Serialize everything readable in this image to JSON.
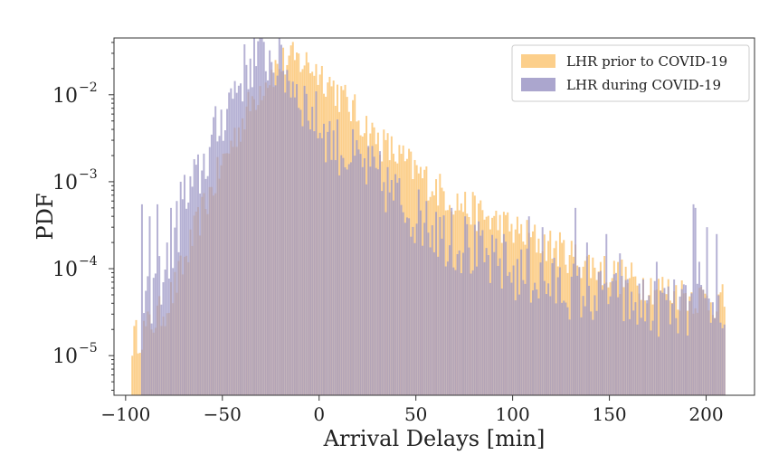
{
  "chart_data": {
    "type": "histogram",
    "xlabel": "Arrival Delays [min]",
    "ylabel": "PDF",
    "xlim": [
      -106,
      225
    ],
    "ylim": [
      3.5e-06,
      0.045
    ],
    "yscale": "log",
    "bin_width": 1,
    "x_ticks": [
      -100,
      -50,
      0,
      50,
      100,
      150,
      200
    ],
    "x_tick_labels": [
      "−100",
      "−50",
      "0",
      "50",
      "100",
      "150",
      "200"
    ],
    "y_ticks": [
      {
        "value": 1e-05,
        "base": "10",
        "exp": "−5"
      },
      {
        "value": 0.0001,
        "base": "10",
        "exp": "−4"
      },
      {
        "value": 0.001,
        "base": "10",
        "exp": "−3"
      },
      {
        "value": 0.01,
        "base": "10",
        "exp": "−2"
      }
    ],
    "grid": false,
    "legend_position": "top-right",
    "series": [
      {
        "name": "LHR prior to COVID-19",
        "color": "#fbc777",
        "range": [
          -97,
          209
        ],
        "profile": [
          [
            -97,
            1.5e-05
          ],
          [
            -90,
            2e-05
          ],
          [
            -80,
            3.5e-05
          ],
          [
            -75,
            6e-05
          ],
          [
            -70,
            0.00012
          ],
          [
            -65,
            0.00025
          ],
          [
            -60,
            0.0005
          ],
          [
            -55,
            0.0009
          ],
          [
            -50,
            0.0017
          ],
          [
            -45,
            0.003
          ],
          [
            -40,
            0.005
          ],
          [
            -35,
            0.0085
          ],
          [
            -30,
            0.013
          ],
          [
            -25,
            0.018
          ],
          [
            -20,
            0.023
          ],
          [
            -15,
            0.025
          ],
          [
            -10,
            0.0245
          ],
          [
            -5,
            0.022
          ],
          [
            0,
            0.018
          ],
          [
            5,
            0.014
          ],
          [
            10,
            0.01
          ],
          [
            15,
            0.0075
          ],
          [
            20,
            0.0055
          ],
          [
            25,
            0.004
          ],
          [
            30,
            0.003
          ],
          [
            40,
            0.002
          ],
          [
            50,
            0.0013
          ],
          [
            60,
            0.00085
          ],
          [
            70,
            0.0006
          ],
          [
            80,
            0.00045
          ],
          [
            90,
            0.00035
          ],
          [
            100,
            0.00028
          ],
          [
            110,
            0.00022
          ],
          [
            120,
            0.00018
          ],
          [
            130,
            0.00014
          ],
          [
            140,
            0.00011
          ],
          [
            150,
            9e-05
          ],
          [
            160,
            7.5e-05
          ],
          [
            170,
            6.5e-05
          ],
          [
            180,
            5.5e-05
          ],
          [
            190,
            5e-05
          ],
          [
            200,
            4.5e-05
          ],
          [
            209,
            4e-05
          ]
        ]
      },
      {
        "name": "LHR during COVID-19",
        "color": "#9c97c6",
        "range": [
          -92,
          209
        ],
        "profile": [
          [
            -92,
            3e-05
          ],
          [
            -80,
            0.0001
          ],
          [
            -70,
            0.0005
          ],
          [
            -60,
            0.0016
          ],
          [
            -55,
            0.003
          ],
          [
            -50,
            0.006
          ],
          [
            -45,
            0.011
          ],
          [
            -40,
            0.017
          ],
          [
            -35,
            0.025
          ],
          [
            -32,
            0.029
          ],
          [
            -30,
            0.029
          ],
          [
            -25,
            0.026
          ],
          [
            -20,
            0.021
          ],
          [
            -15,
            0.015
          ],
          [
            -10,
            0.01
          ],
          [
            -5,
            0.0065
          ],
          [
            0,
            0.0045
          ],
          [
            5,
            0.0032
          ],
          [
            10,
            0.0025
          ],
          [
            20,
            0.0016
          ],
          [
            30,
            0.0011
          ],
          [
            40,
            0.00065
          ],
          [
            50,
            0.0004
          ],
          [
            60,
            0.00028
          ],
          [
            70,
            0.0002
          ],
          [
            80,
            0.00015
          ],
          [
            90,
            0.00011
          ],
          [
            100,
            9e-05
          ],
          [
            120,
            6.5e-05
          ],
          [
            140,
            5e-05
          ],
          [
            160,
            4e-05
          ],
          [
            180,
            3.5e-05
          ],
          [
            209,
            3e-05
          ]
        ],
        "spikes": [
          [
            -92,
            0.00055
          ],
          [
            -88,
            0.0004
          ],
          [
            -84,
            0.00055
          ],
          [
            -79,
            0.0002
          ],
          [
            -77,
            0.0005
          ],
          [
            -74,
            0.0006
          ],
          [
            -72,
            0.001
          ],
          [
            -70,
            0.0012
          ],
          [
            55,
            0.0006
          ],
          [
            60,
            0.00045
          ],
          [
            68,
            0.0005
          ],
          [
            75,
            0.0004
          ],
          [
            82,
            0.00035
          ],
          [
            95,
            0.00025
          ],
          [
            108,
            0.0004
          ],
          [
            115,
            0.0003
          ],
          [
            132,
            0.0005
          ],
          [
            138,
            0.0002
          ],
          [
            148,
            0.00025
          ],
          [
            155,
            0.00015
          ],
          [
            174,
            0.00012
          ],
          [
            178,
            6e-05
          ],
          [
            193,
            0.00055
          ],
          [
            194,
            0.0005
          ],
          [
            196,
            0.00012
          ],
          [
            200,
            0.0003
          ],
          [
            205,
            0.00025
          ]
        ]
      }
    ]
  }
}
